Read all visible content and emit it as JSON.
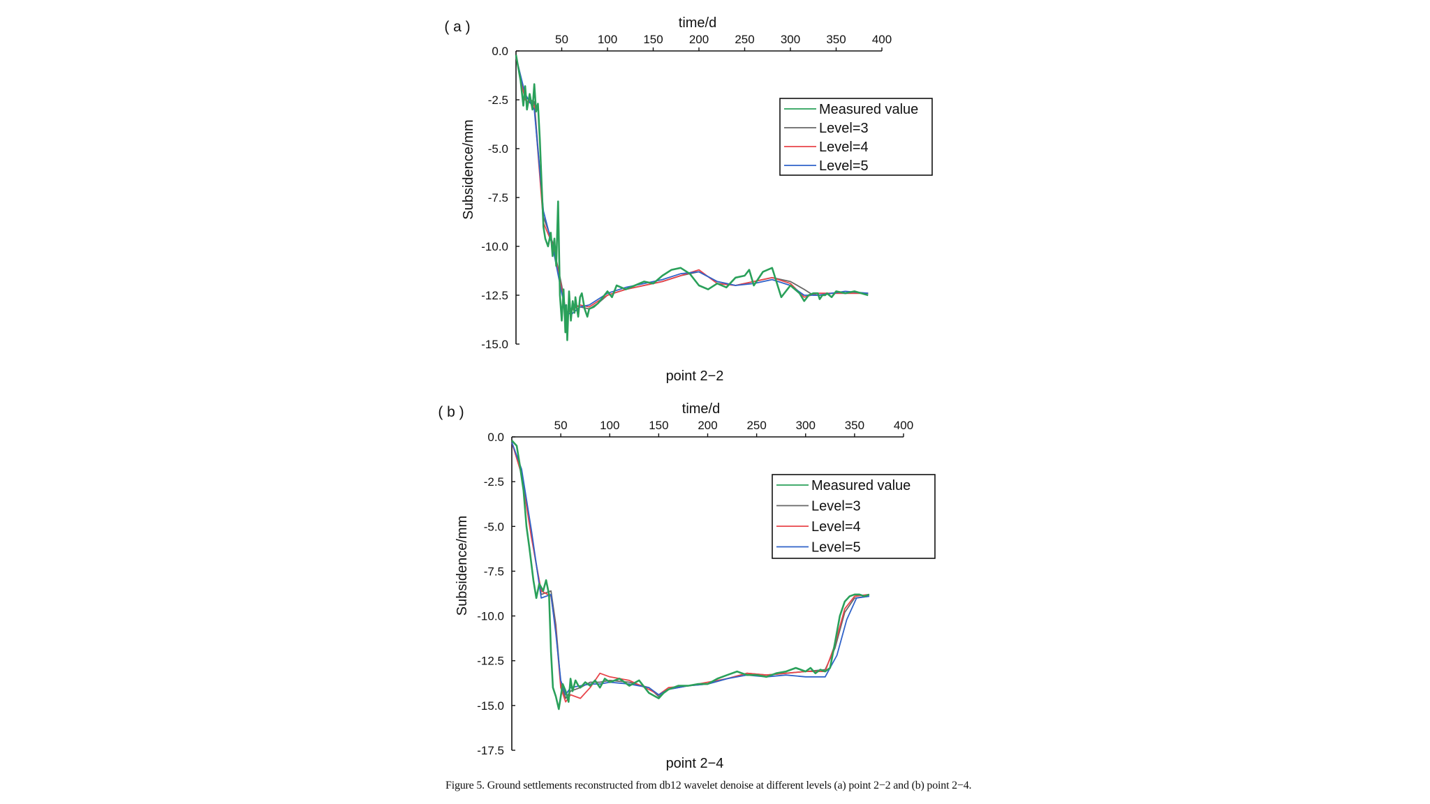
{
  "caption": "Figure 5. Ground settlements reconstructed from db12 wavelet denoise at different levels (a) point 2−2 and (b) point 2−4.",
  "colors": {
    "measured": "#2aa05a",
    "level3": "#666666",
    "level4": "#e8444a",
    "level5": "#2f62c9",
    "axis": "#111111"
  },
  "chart_data": [
    {
      "panel": "( a )",
      "type": "line",
      "title": "point 2−2",
      "xlabel": "time/d",
      "ylabel": "Subsidence/mm",
      "x_axis_position": "top",
      "xlim": [
        0,
        400
      ],
      "ylim": [
        -15,
        0
      ],
      "xticks": [
        "50",
        "100",
        "150",
        "200",
        "250",
        "300",
        "350",
        "400"
      ],
      "yticks": [
        "0.0",
        "-2.5",
        "-5.0",
        "-7.5",
        "-10.0",
        "-12.5",
        "-15.0"
      ],
      "legend": [
        "Measured value",
        "Level=3",
        "Level=4",
        "Level=5"
      ],
      "legend_position": "top-right",
      "grid": false,
      "series": [
        {
          "name": "Measured value",
          "color": "measured",
          "x": [
            0,
            5,
            8,
            10,
            12,
            15,
            18,
            20,
            22,
            24,
            26,
            28,
            30,
            32,
            35,
            38,
            40,
            42,
            44,
            46,
            48,
            50,
            52,
            54,
            55,
            56,
            58,
            60,
            62,
            64,
            65,
            66,
            68,
            70,
            72,
            75,
            78,
            80,
            85,
            90,
            95,
            100,
            105,
            110,
            120,
            130,
            140,
            150,
            160,
            170,
            180,
            190,
            200,
            210,
            220,
            230,
            240,
            250,
            255,
            260,
            270,
            280,
            290,
            300,
            310,
            315,
            320,
            325,
            330,
            332,
            335,
            338,
            340,
            345,
            350,
            360,
            370,
            385
          ],
          "y": [
            -0.2,
            -1.5,
            -2.8,
            -1.8,
            -3.0,
            -2.2,
            -3.0,
            -1.7,
            -3.1,
            -2.7,
            -4.5,
            -6.8,
            -9.0,
            -9.6,
            -10.0,
            -9.3,
            -10.5,
            -9.6,
            -11.0,
            -7.7,
            -12.5,
            -13.8,
            -12.2,
            -14.4,
            -13.0,
            -14.8,
            -12.3,
            -13.8,
            -12.8,
            -13.4,
            -12.6,
            -13.0,
            -13.6,
            -12.6,
            -12.4,
            -13.2,
            -13.6,
            -13.2,
            -13.1,
            -12.9,
            -12.6,
            -12.3,
            -12.6,
            -12.0,
            -12.2,
            -12.0,
            -11.8,
            -11.9,
            -11.5,
            -11.2,
            -11.1,
            -11.4,
            -12.0,
            -12.2,
            -11.9,
            -12.1,
            -11.6,
            -11.5,
            -11.2,
            -12.0,
            -11.3,
            -11.1,
            -12.6,
            -12.0,
            -12.4,
            -12.8,
            -12.5,
            -12.4,
            -12.4,
            -12.7,
            -12.5,
            -12.5,
            -12.4,
            -12.6,
            -12.3,
            -12.4,
            -12.3,
            -12.5
          ]
        },
        {
          "name": "Level=3",
          "color": "level3",
          "x": [
            0,
            10,
            20,
            30,
            40,
            50,
            55,
            60,
            65,
            70,
            80,
            90,
            100,
            120,
            140,
            160,
            180,
            200,
            220,
            240,
            260,
            280,
            300,
            315,
            325,
            335,
            345,
            360,
            385
          ],
          "y": [
            -0.3,
            -2.4,
            -2.6,
            -8.5,
            -9.8,
            -12.0,
            -13.5,
            -13.2,
            -13.0,
            -13.1,
            -13.2,
            -12.9,
            -12.5,
            -12.2,
            -12.0,
            -11.8,
            -11.5,
            -11.3,
            -11.8,
            -12.0,
            -11.8,
            -11.6,
            -11.8,
            -12.2,
            -12.5,
            -12.5,
            -12.4,
            -12.4,
            -12.4
          ]
        },
        {
          "name": "Level=4",
          "color": "level4",
          "x": [
            0,
            10,
            20,
            30,
            40,
            50,
            55,
            60,
            70,
            80,
            90,
            100,
            120,
            140,
            160,
            180,
            200,
            220,
            240,
            260,
            280,
            300,
            315,
            330,
            345,
            360,
            385
          ],
          "y": [
            -0.3,
            -2.5,
            -2.8,
            -8.8,
            -9.9,
            -12.2,
            -13.4,
            -13.3,
            -13.0,
            -13.1,
            -12.8,
            -12.5,
            -12.2,
            -12.0,
            -11.8,
            -11.5,
            -11.2,
            -11.9,
            -12.0,
            -11.8,
            -11.6,
            -11.9,
            -12.6,
            -12.4,
            -12.4,
            -12.4,
            -12.4
          ]
        },
        {
          "name": "Level=5",
          "color": "level5",
          "x": [
            0,
            10,
            20,
            30,
            40,
            50,
            55,
            60,
            70,
            80,
            90,
            100,
            120,
            140,
            160,
            180,
            200,
            220,
            240,
            260,
            280,
            300,
            315,
            330,
            345,
            360,
            385
          ],
          "y": [
            -0.3,
            -2.2,
            -3.0,
            -8.2,
            -10.0,
            -12.4,
            -13.3,
            -13.5,
            -13.1,
            -13.0,
            -12.7,
            -12.4,
            -12.1,
            -11.9,
            -11.7,
            -11.4,
            -11.3,
            -11.8,
            -12.0,
            -11.9,
            -11.7,
            -12.0,
            -12.5,
            -12.5,
            -12.4,
            -12.3,
            -12.4
          ]
        }
      ]
    },
    {
      "panel": "( b )",
      "type": "line",
      "title": "point 2−4",
      "xlabel": "time/d",
      "ylabel": "Subsidence/mm",
      "x_axis_position": "top",
      "xlim": [
        0,
        400
      ],
      "ylim": [
        -17.5,
        0
      ],
      "xticks": [
        "50",
        "100",
        "150",
        "200",
        "250",
        "300",
        "350",
        "400"
      ],
      "yticks": [
        "0.0",
        "-2.5",
        "-5.0",
        "-7.5",
        "-10.0",
        "-12.5",
        "-15.0",
        "-17.5"
      ],
      "legend": [
        "Measured value",
        "Level=3",
        "Level=4",
        "Level=5"
      ],
      "legend_position": "top-right",
      "grid": false,
      "series": [
        {
          "name": "Measured value",
          "color": "measured",
          "x": [
            0,
            5,
            8,
            12,
            15,
            18,
            22,
            25,
            28,
            32,
            35,
            38,
            40,
            42,
            45,
            48,
            50,
            52,
            55,
            58,
            60,
            62,
            65,
            68,
            70,
            75,
            80,
            85,
            90,
            95,
            100,
            110,
            120,
            130,
            140,
            150,
            155,
            160,
            170,
            180,
            190,
            200,
            210,
            220,
            230,
            240,
            250,
            260,
            270,
            280,
            290,
            300,
            305,
            310,
            315,
            320,
            325,
            330,
            335,
            340,
            345,
            350,
            355,
            360,
            365
          ],
          "y": [
            -0.2,
            -0.5,
            -1.5,
            -3.0,
            -5.0,
            -6.2,
            -8.0,
            -9.0,
            -8.2,
            -8.6,
            -8.0,
            -8.8,
            -12.0,
            -14.0,
            -14.5,
            -15.2,
            -14.5,
            -13.8,
            -14.2,
            -14.8,
            -13.5,
            -14.2,
            -13.6,
            -13.9,
            -14.0,
            -13.7,
            -13.9,
            -13.6,
            -14.0,
            -13.5,
            -13.7,
            -13.5,
            -13.9,
            -13.6,
            -14.3,
            -14.6,
            -14.3,
            -14.1,
            -13.9,
            -13.9,
            -13.8,
            -13.8,
            -13.5,
            -13.3,
            -13.1,
            -13.3,
            -13.3,
            -13.4,
            -13.2,
            -13.1,
            -12.9,
            -13.1,
            -12.9,
            -13.2,
            -13.0,
            -13.1,
            -12.9,
            -11.5,
            -10.0,
            -9.2,
            -8.9,
            -8.8,
            -8.8,
            -8.9,
            -8.8
          ]
        },
        {
          "name": "Level=3",
          "color": "level3",
          "x": [
            0,
            10,
            20,
            30,
            40,
            45,
            50,
            55,
            60,
            70,
            80,
            90,
            100,
            120,
            140,
            150,
            160,
            180,
            200,
            220,
            240,
            260,
            280,
            300,
            320,
            330,
            340,
            350,
            365
          ],
          "y": [
            -0.3,
            -2.0,
            -5.5,
            -8.8,
            -8.6,
            -10.5,
            -13.8,
            -14.6,
            -14.2,
            -14.0,
            -13.7,
            -13.7,
            -13.6,
            -13.7,
            -14.0,
            -14.5,
            -14.1,
            -13.9,
            -13.8,
            -13.5,
            -13.2,
            -13.3,
            -13.2,
            -13.1,
            -13.0,
            -11.8,
            -9.8,
            -9.0,
            -8.9
          ]
        },
        {
          "name": "Level=4",
          "color": "level4",
          "x": [
            0,
            10,
            20,
            30,
            40,
            45,
            50,
            55,
            60,
            70,
            80,
            90,
            100,
            120,
            140,
            150,
            160,
            180,
            200,
            220,
            240,
            260,
            280,
            300,
            320,
            330,
            340,
            350,
            365
          ],
          "y": [
            -0.3,
            -2.1,
            -5.6,
            -8.6,
            -8.9,
            -10.8,
            -14.0,
            -14.8,
            -14.4,
            -14.6,
            -14.0,
            -13.2,
            -13.4,
            -13.6,
            -14.1,
            -14.4,
            -14.0,
            -13.9,
            -13.7,
            -13.5,
            -13.2,
            -13.3,
            -13.2,
            -13.1,
            -13.1,
            -11.6,
            -9.6,
            -8.9,
            -8.8
          ]
        },
        {
          "name": "Level=5",
          "color": "level5",
          "x": [
            0,
            10,
            20,
            30,
            40,
            45,
            50,
            55,
            60,
            70,
            80,
            90,
            100,
            120,
            140,
            150,
            160,
            180,
            200,
            220,
            240,
            260,
            280,
            300,
            320,
            332,
            342,
            352,
            365
          ],
          "y": [
            -0.3,
            -1.8,
            -5.2,
            -9.0,
            -8.8,
            -11.0,
            -13.6,
            -14.4,
            -14.0,
            -13.9,
            -13.8,
            -13.8,
            -13.7,
            -13.8,
            -14.0,
            -14.4,
            -14.1,
            -13.9,
            -13.8,
            -13.5,
            -13.3,
            -13.4,
            -13.3,
            -13.4,
            -13.4,
            -12.2,
            -10.2,
            -9.0,
            -8.9
          ]
        }
      ]
    }
  ]
}
